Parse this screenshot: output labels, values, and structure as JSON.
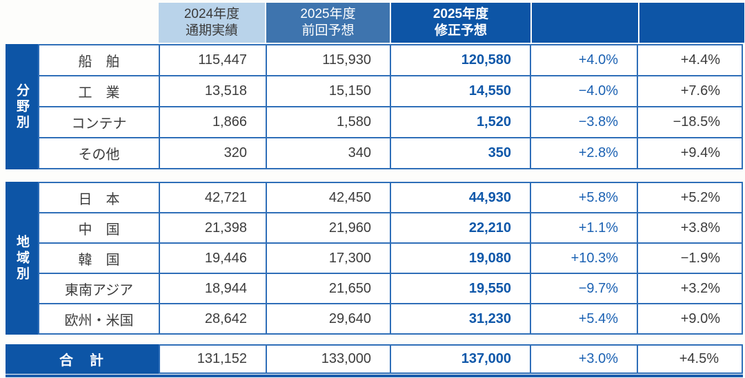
{
  "table": {
    "colors": {
      "dark_blue": "#0d55a6",
      "mid_blue": "#3e74ae",
      "light_blue": "#b9d3ea",
      "grid_line": "#2e6eb8",
      "revised_value_text": "#0e57a9",
      "percent_blue_text": "#1c62b3",
      "body_text": "#3c3c3c"
    },
    "columns": {
      "actual_2024": "2024年度\n通期実績",
      "prev_forecast_2025": "2025年度\n前回予想",
      "revised_forecast_2025": "2025年度\n修正予想",
      "pct_col_1": "",
      "pct_col_2": ""
    },
    "sections": [
      {
        "band": "分野別",
        "rows": [
          {
            "label": "船　舶",
            "actual": "115,447",
            "prev": "115,930",
            "revised": "120,580",
            "pct1": "+4.0%",
            "pct2": "+4.4%"
          },
          {
            "label": "工　業",
            "actual": "13,518",
            "prev": "15,150",
            "revised": "14,550",
            "pct1": "−4.0%",
            "pct2": "+7.6%"
          },
          {
            "label": "コンテナ",
            "actual": "1,866",
            "prev": "1,580",
            "revised": "1,520",
            "pct1": "−3.8%",
            "pct2": "−18.5%"
          },
          {
            "label": "その他",
            "actual": "320",
            "prev": "340",
            "revised": "350",
            "pct1": "+2.8%",
            "pct2": "+9.4%"
          }
        ]
      },
      {
        "band": "地域別",
        "rows": [
          {
            "label": "日　本",
            "actual": "42,721",
            "prev": "42,450",
            "revised": "44,930",
            "pct1": "+5.8%",
            "pct2": "+5.2%"
          },
          {
            "label": "中　国",
            "actual": "21,398",
            "prev": "21,960",
            "revised": "22,210",
            "pct1": "+1.1%",
            "pct2": "+3.8%"
          },
          {
            "label": "韓　国",
            "actual": "19,446",
            "prev": "17,300",
            "revised": "19,080",
            "pct1": "+10.3%",
            "pct2": "−1.9%"
          },
          {
            "label": "東南アジア",
            "actual": "18,944",
            "prev": "21,650",
            "revised": "19,550",
            "pct1": "−9.7%",
            "pct2": "+3.2%"
          },
          {
            "label": "欧州・米国",
            "actual": "28,642",
            "prev": "29,640",
            "revised": "31,230",
            "pct1": "+5.4%",
            "pct2": "+9.0%"
          }
        ]
      }
    ],
    "total": {
      "label": "合　計",
      "actual": "131,152",
      "prev": "133,000",
      "revised": "137,000",
      "pct1": "+3.0%",
      "pct2": "+4.5%"
    }
  }
}
